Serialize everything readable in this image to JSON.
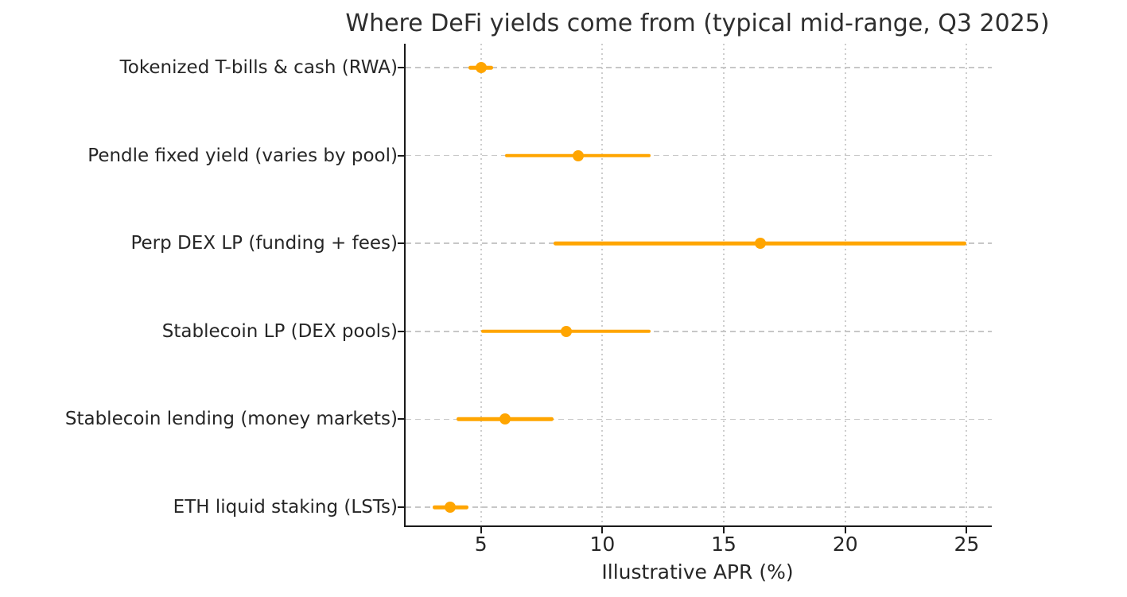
{
  "chart_data": {
    "type": "scatter",
    "subtype": "dot-with-range",
    "title": "Where DeFi yields come from (typical mid-range, Q3 2025)",
    "xlabel": "Illustrative APR (%)",
    "ylabel": "",
    "categories": [
      "Tokenized T-bills & cash (RWA)",
      "Pendle fixed yield (varies by pool)",
      "Perp DEX LP (funding + fees)",
      "Stablecoin LP (DEX pools)",
      "Stablecoin lending (money markets)",
      "ETH liquid staking (LSTs)"
    ],
    "series": [
      {
        "name": "range low (APR %)",
        "values": [
          4.5,
          6.0,
          8.0,
          5.0,
          4.0,
          3.0
        ]
      },
      {
        "name": "mid (APR %)",
        "values": [
          5.0,
          9.0,
          16.5,
          8.5,
          6.0,
          3.75
        ]
      },
      {
        "name": "range high (APR %)",
        "values": [
          5.5,
          12.0,
          25.0,
          12.0,
          8.0,
          4.5
        ]
      }
    ],
    "xticks": [
      5,
      10,
      15,
      20,
      25
    ],
    "xlim": [
      1.9,
      26.1
    ],
    "grid": {
      "horizontal": "dashed",
      "vertical": "dotted"
    },
    "legend": false,
    "marker_color": "#FFA500",
    "spine_color": "#1a1a1a",
    "gridline_color": "#c7c7c7"
  }
}
